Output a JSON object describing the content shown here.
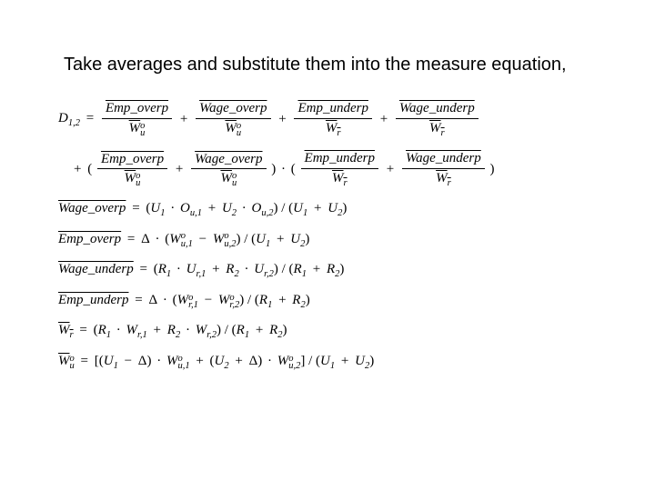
{
  "title": "Take averages and substitute them into the measure equation,",
  "symbols": {
    "D12": "D",
    "D12_sub": "1,2",
    "EmpOverP": "Emp_overp",
    "WageOverP": "Wage_overp",
    "EmpUnderP": "Emp_underp",
    "WageUnderP": "Wage_underp",
    "Wuo": "W",
    "Wuo_sub": "u",
    "Wuo_sup": "o",
    "Wr": "W",
    "Wr_sub": "r",
    "U1": "U",
    "U1_sub": "1",
    "U2": "U",
    "U2_sub": "2",
    "R1": "R",
    "R1_sub": "1",
    "R2": "R",
    "R2_sub": "2",
    "Ou1": "O",
    "Ou1_sub": "u,1",
    "Ou2": "O",
    "Ou2_sub": "u,2",
    "Ur1": "U",
    "Ur1_sub": "r,1",
    "Ur2": "U",
    "Ur2_sub": "r,2",
    "Wu1o": "W",
    "Wu1o_sub": "u,1",
    "Wu1o_sup": "o",
    "Wu2o": "W",
    "Wu2o_sub": "u,2",
    "Wu2o_sup": "o",
    "Wr1o": "W",
    "Wr1o_sub": "r,1",
    "Wr1o_sup": "o",
    "Wr2o": "W",
    "Wr2o_sub": "r,2",
    "Wr2o_sup": "o",
    "Wr1": "W",
    "Wr1_sub": "r,1",
    "Wr2": "W",
    "Wr2_sub": "r,2",
    "Delta": "Δ",
    "eq": "=",
    "plus": "+",
    "minus": "−",
    "lp": "(",
    "rp": ")",
    "dot": "·",
    "slash": "/",
    "lb": "[",
    "rb": "]"
  },
  "style": {
    "title_fontsize": 20,
    "eq_fontsize": 15,
    "eq_font": "Times New Roman",
    "background": "#ffffff",
    "text_color": "#000000"
  }
}
